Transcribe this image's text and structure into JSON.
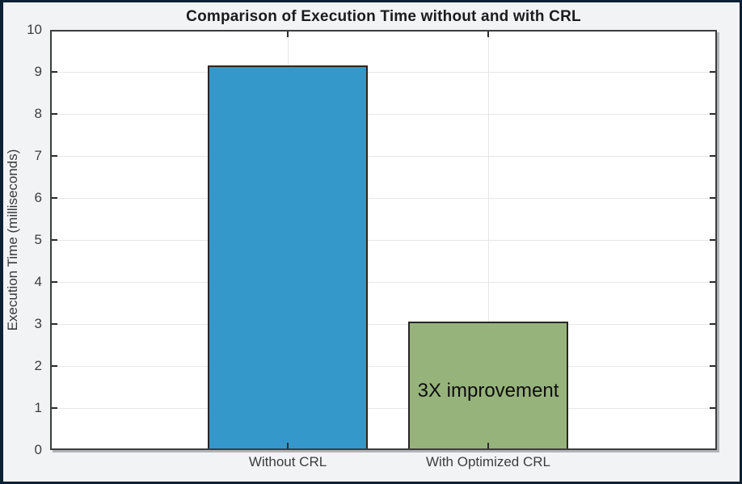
{
  "figure": {
    "background_color": "#f2f3f5",
    "frame_color": "#0c2134",
    "plot_background": "#ffffff",
    "axes_edge_color": "#3d3d3d",
    "grid_color": "#e7e7e7",
    "tick_color": "#2a2a2a",
    "tick_label_color": "#3d3d3d"
  },
  "chart_data": {
    "type": "bar",
    "title": "Comparison of Execution Time without and with CRL",
    "xlabel": "",
    "ylabel": "Execution Time (milliseconds)",
    "categories": [
      "Without CRL",
      "With Optimized CRL"
    ],
    "values": [
      9.15,
      3.05
    ],
    "bar_colors": [
      "#3598cb",
      "#97b37c"
    ],
    "bar_edge_color": "#262626",
    "ylim": [
      0,
      10
    ],
    "ytick_step": 1,
    "ytick_labels": [
      "0",
      "1",
      "2",
      "3",
      "4",
      "5",
      "6",
      "7",
      "8",
      "9",
      "10"
    ],
    "grid": true,
    "legend": "none",
    "annotations": [
      {
        "text": "3X improvement",
        "category_index": 1,
        "y": 1.4,
        "color": "#0d0d0d"
      }
    ]
  }
}
